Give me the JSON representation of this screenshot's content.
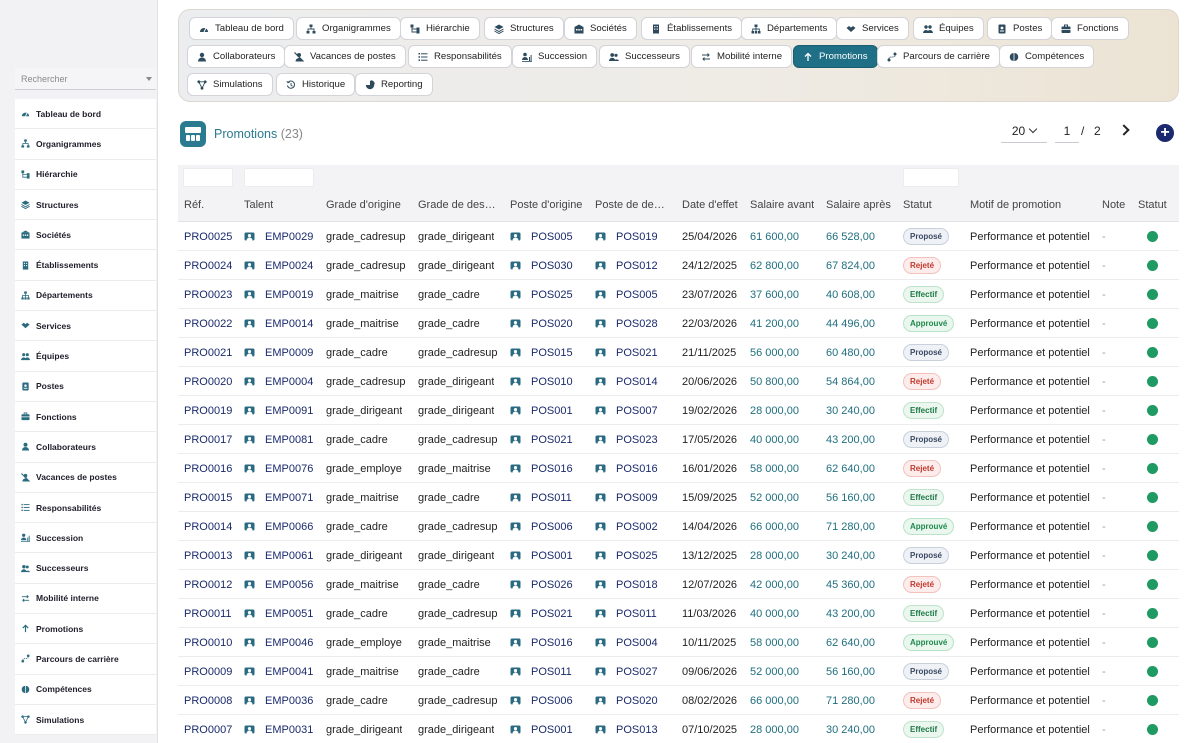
{
  "sidebar": {
    "search_placeholder": "Rechercher",
    "items": [
      {
        "label": "Tableau de bord",
        "icon": "dashboard-icon"
      },
      {
        "label": "Organigrammes",
        "icon": "org-chart-icon"
      },
      {
        "label": "Hiérarchie",
        "icon": "hierarchy-icon"
      },
      {
        "label": "Structures",
        "icon": "layers-icon"
      },
      {
        "label": "Sociétés",
        "icon": "building-icon"
      },
      {
        "label": "Établissements",
        "icon": "office-building-icon"
      },
      {
        "label": "Départements",
        "icon": "sitemap-icon"
      },
      {
        "label": "Services",
        "icon": "handshake-icon"
      },
      {
        "label": "Équipes",
        "icon": "users-icon"
      },
      {
        "label": "Postes",
        "icon": "id-badge-icon"
      },
      {
        "label": "Fonctions",
        "icon": "briefcase-icon"
      },
      {
        "label": "Collaborateurs",
        "icon": "user-icon"
      },
      {
        "label": "Vacances de postes",
        "icon": "user-slash-icon"
      },
      {
        "label": "Responsabilités",
        "icon": "list-icon"
      },
      {
        "label": "Succession",
        "icon": "user-chart-icon"
      },
      {
        "label": "Successeurs",
        "icon": "user-group-icon"
      },
      {
        "label": "Mobilité interne",
        "icon": "arrows-exchange-icon"
      },
      {
        "label": "Promotions",
        "icon": "arrow-up-icon"
      },
      {
        "label": "Parcours de carrière",
        "icon": "route-icon"
      },
      {
        "label": "Compétences",
        "icon": "brain-icon"
      },
      {
        "label": "Simulations",
        "icon": "network-icon"
      }
    ]
  },
  "toolbar": {
    "chips": [
      {
        "label": "Tableau de bord",
        "icon": "dashboard-icon"
      },
      {
        "label": "Organigrammes",
        "icon": "org-chart-icon"
      },
      {
        "label": "Hiérarchie",
        "icon": "hierarchy-icon"
      },
      {
        "label": "Structures",
        "icon": "layers-icon"
      },
      {
        "label": "Sociétés",
        "icon": "building-icon"
      },
      {
        "label": "Établissements",
        "icon": "office-building-icon"
      },
      {
        "label": "Départements",
        "icon": "sitemap-icon"
      },
      {
        "label": "Services",
        "icon": "handshake-icon"
      },
      {
        "label": "Équipes",
        "icon": "users-icon"
      },
      {
        "label": "Postes",
        "icon": "id-badge-icon"
      },
      {
        "label": "Fonctions",
        "icon": "briefcase-icon"
      },
      {
        "label": "Collaborateurs",
        "icon": "user-icon"
      },
      {
        "label": "Vacances de postes",
        "icon": "user-slash-icon"
      },
      {
        "label": "Responsabilités",
        "icon": "list-icon"
      },
      {
        "label": "Succession",
        "icon": "user-chart-icon"
      },
      {
        "label": "Successeurs",
        "icon": "user-group-icon"
      },
      {
        "label": "Mobilité interne",
        "icon": "arrows-exchange-icon"
      },
      {
        "label": "Promotions",
        "icon": "arrow-up-icon",
        "active": true
      },
      {
        "label": "Parcours de carrière",
        "icon": "route-icon"
      },
      {
        "label": "Compétences",
        "icon": "brain-icon"
      },
      {
        "label": "Simulations",
        "icon": "network-icon"
      },
      {
        "label": "Historique",
        "icon": "history-icon"
      },
      {
        "label": "Reporting",
        "icon": "pie-chart-icon"
      }
    ]
  },
  "header": {
    "title": "Promotions",
    "count": "(23)",
    "page_size": "20",
    "current_page": "1",
    "page_separator": "/",
    "total_pages": "2",
    "add_label": "+"
  },
  "table": {
    "columns": [
      "Réf.",
      "Talent",
      "Grade d'origine",
      "Grade de des…",
      "Poste d'origine",
      "Poste de de…",
      "Date d'effet",
      "Salaire avant",
      "Salaire après",
      "Statut",
      "Motif de promotion",
      "Note",
      "Statut"
    ],
    "status_colors": {
      "Proposé": {
        "bg": "#eef1f6",
        "fg": "#3b4a63",
        "border": "#c9d0dc"
      },
      "Rejeté": {
        "bg": "#fdecec",
        "fg": "#c0392b",
        "border": "#f2c2bd"
      },
      "Effectif": {
        "bg": "#eaf6ee",
        "fg": "#1e7a45",
        "border": "#bfe3cb"
      },
      "Approuvé": {
        "bg": "#e9f7ee",
        "fg": "#1e8a4c",
        "border": "#b9e3c8"
      }
    },
    "rows": [
      {
        "ref": "PRO0025",
        "talent": "EMP0029",
        "grade_from": "grade_cadresup",
        "grade_to": "grade_dirigeant",
        "post_from": "POS005",
        "post_to": "POS019",
        "date": "25/04/2026",
        "salary_before": "61 600,00",
        "salary_after": "66 528,00",
        "status": "Proposé",
        "reason": "Performance et potentiel",
        "note": "-"
      },
      {
        "ref": "PRO0024",
        "talent": "EMP0024",
        "grade_from": "grade_cadresup",
        "grade_to": "grade_dirigeant",
        "post_from": "POS030",
        "post_to": "POS012",
        "date": "24/12/2025",
        "salary_before": "62 800,00",
        "salary_after": "67 824,00",
        "status": "Rejeté",
        "reason": "Performance et potentiel",
        "note": "-"
      },
      {
        "ref": "PRO0023",
        "talent": "EMP0019",
        "grade_from": "grade_maitrise",
        "grade_to": "grade_cadre",
        "post_from": "POS025",
        "post_to": "POS005",
        "date": "23/07/2026",
        "salary_before": "37 600,00",
        "salary_after": "40 608,00",
        "status": "Effectif",
        "reason": "Performance et potentiel",
        "note": "-"
      },
      {
        "ref": "PRO0022",
        "talent": "EMP0014",
        "grade_from": "grade_maitrise",
        "grade_to": "grade_cadre",
        "post_from": "POS020",
        "post_to": "POS028",
        "date": "22/03/2026",
        "salary_before": "41 200,00",
        "salary_after": "44 496,00",
        "status": "Approuvé",
        "reason": "Performance et potentiel",
        "note": "-"
      },
      {
        "ref": "PRO0021",
        "talent": "EMP0009",
        "grade_from": "grade_cadre",
        "grade_to": "grade_cadresup",
        "post_from": "POS015",
        "post_to": "POS021",
        "date": "21/11/2025",
        "salary_before": "56 000,00",
        "salary_after": "60 480,00",
        "status": "Proposé",
        "reason": "Performance et potentiel",
        "note": "-"
      },
      {
        "ref": "PRO0020",
        "talent": "EMP0004",
        "grade_from": "grade_cadresup",
        "grade_to": "grade_dirigeant",
        "post_from": "POS010",
        "post_to": "POS014",
        "date": "20/06/2026",
        "salary_before": "50 800,00",
        "salary_after": "54 864,00",
        "status": "Rejeté",
        "reason": "Performance et potentiel",
        "note": "-"
      },
      {
        "ref": "PRO0019",
        "talent": "EMP0091",
        "grade_from": "grade_dirigeant",
        "grade_to": "grade_dirigeant",
        "post_from": "POS001",
        "post_to": "POS007",
        "date": "19/02/2026",
        "salary_before": "28 000,00",
        "salary_after": "30 240,00",
        "status": "Effectif",
        "reason": "Performance et potentiel",
        "note": "-"
      },
      {
        "ref": "PRO0017",
        "talent": "EMP0081",
        "grade_from": "grade_cadre",
        "grade_to": "grade_cadresup",
        "post_from": "POS021",
        "post_to": "POS023",
        "date": "17/05/2026",
        "salary_before": "40 000,00",
        "salary_after": "43 200,00",
        "status": "Proposé",
        "reason": "Performance et potentiel",
        "note": "-"
      },
      {
        "ref": "PRO0016",
        "talent": "EMP0076",
        "grade_from": "grade_employe",
        "grade_to": "grade_maitrise",
        "post_from": "POS016",
        "post_to": "POS016",
        "date": "16/01/2026",
        "salary_before": "58 000,00",
        "salary_after": "62 640,00",
        "status": "Rejeté",
        "reason": "Performance et potentiel",
        "note": "-"
      },
      {
        "ref": "PRO0015",
        "talent": "EMP0071",
        "grade_from": "grade_maitrise",
        "grade_to": "grade_cadre",
        "post_from": "POS011",
        "post_to": "POS009",
        "date": "15/09/2025",
        "salary_before": "52 000,00",
        "salary_after": "56 160,00",
        "status": "Effectif",
        "reason": "Performance et potentiel",
        "note": "-"
      },
      {
        "ref": "PRO0014",
        "talent": "EMP0066",
        "grade_from": "grade_cadre",
        "grade_to": "grade_cadresup",
        "post_from": "POS006",
        "post_to": "POS002",
        "date": "14/04/2026",
        "salary_before": "66 000,00",
        "salary_after": "71 280,00",
        "status": "Approuvé",
        "reason": "Performance et potentiel",
        "note": "-"
      },
      {
        "ref": "PRO0013",
        "talent": "EMP0061",
        "grade_from": "grade_dirigeant",
        "grade_to": "grade_dirigeant",
        "post_from": "POS001",
        "post_to": "POS025",
        "date": "13/12/2025",
        "salary_before": "28 000,00",
        "salary_after": "30 240,00",
        "status": "Proposé",
        "reason": "Performance et potentiel",
        "note": "-"
      },
      {
        "ref": "PRO0012",
        "talent": "EMP0056",
        "grade_from": "grade_maitrise",
        "grade_to": "grade_cadre",
        "post_from": "POS026",
        "post_to": "POS018",
        "date": "12/07/2026",
        "salary_before": "42 000,00",
        "salary_after": "45 360,00",
        "status": "Rejeté",
        "reason": "Performance et potentiel",
        "note": "-"
      },
      {
        "ref": "PRO0011",
        "talent": "EMP0051",
        "grade_from": "grade_cadre",
        "grade_to": "grade_cadresup",
        "post_from": "POS021",
        "post_to": "POS011",
        "date": "11/03/2026",
        "salary_before": "40 000,00",
        "salary_after": "43 200,00",
        "status": "Effectif",
        "reason": "Performance et potentiel",
        "note": "-"
      },
      {
        "ref": "PRO0010",
        "talent": "EMP0046",
        "grade_from": "grade_employe",
        "grade_to": "grade_maitrise",
        "post_from": "POS016",
        "post_to": "POS004",
        "date": "10/11/2025",
        "salary_before": "58 000,00",
        "salary_after": "62 640,00",
        "status": "Approuvé",
        "reason": "Performance et potentiel",
        "note": "-"
      },
      {
        "ref": "PRO0009",
        "talent": "EMP0041",
        "grade_from": "grade_maitrise",
        "grade_to": "grade_cadre",
        "post_from": "POS011",
        "post_to": "POS027",
        "date": "09/06/2026",
        "salary_before": "52 000,00",
        "salary_after": "56 160,00",
        "status": "Proposé",
        "reason": "Performance et potentiel",
        "note": "-"
      },
      {
        "ref": "PRO0008",
        "talent": "EMP0036",
        "grade_from": "grade_cadre",
        "grade_to": "grade_cadresup",
        "post_from": "POS006",
        "post_to": "POS020",
        "date": "08/02/2026",
        "salary_before": "66 000,00",
        "salary_after": "71 280,00",
        "status": "Rejeté",
        "reason": "Performance et potentiel",
        "note": "-"
      },
      {
        "ref": "PRO0007",
        "talent": "EMP0031",
        "grade_from": "grade_dirigeant",
        "grade_to": "grade_dirigeant",
        "post_from": "POS001",
        "post_to": "POS013",
        "date": "07/10/2025",
        "salary_before": "28 000,00",
        "salary_after": "30 240,00",
        "status": "Effectif",
        "reason": "Performance et potentiel",
        "note": "-"
      }
    ]
  }
}
